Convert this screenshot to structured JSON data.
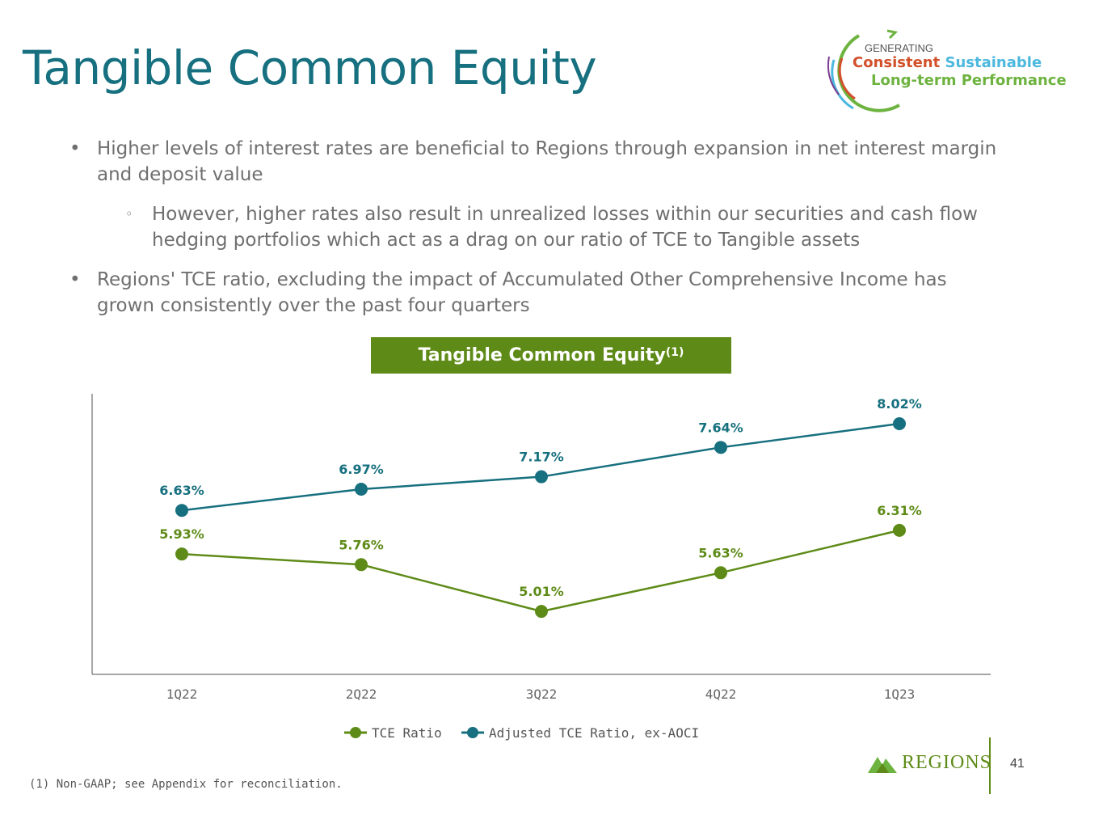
{
  "page": {
    "title": "Tangible Common Equity",
    "logo": {
      "line1": "GENERATING",
      "line2a": "Consistent",
      "line2b": "Sustainable",
      "line3": "Long-term Performance"
    },
    "bullets": {
      "b1": "Higher levels of interest rates are beneficial to Regions through expansion in net interest margin and deposit value",
      "sub1": "However, higher rates also result in unrealized losses within our securities and cash flow hedging portfolios which act as a drag on our ratio of TCE to Tangible assets",
      "b2": "Regions' TCE ratio, excluding the impact of Accumulated Other Comprehensive Income has grown consistently over the past four quarters"
    },
    "chart_header": "Tangible Common Equity",
    "chart_header_sup": "(1)",
    "footnote": "(1) Non-GAAP; see Appendix for reconciliation.",
    "brand": "REGIONS",
    "page_number": "41",
    "colors": {
      "title": "#17707f",
      "green": "#5e8b17",
      "teal": "#17707f"
    }
  },
  "chart_data": {
    "type": "line",
    "categories": [
      "1Q22",
      "2Q22",
      "3Q22",
      "4Q22",
      "1Q23"
    ],
    "series": [
      {
        "name": "TCE Ratio",
        "color": "#5e8b17",
        "values": [
          5.93,
          5.76,
          5.01,
          5.63,
          6.31
        ],
        "labels": [
          "5.93%",
          "5.76%",
          "5.01%",
          "5.63%",
          "6.31%"
        ]
      },
      {
        "name": "Adjusted TCE Ratio, ex-AOCI",
        "color": "#17707f",
        "values": [
          6.63,
          6.97,
          7.17,
          7.64,
          8.02
        ],
        "labels": [
          "6.63%",
          "6.97%",
          "7.17%",
          "7.64%",
          "8.02%"
        ]
      }
    ],
    "ylim": [
      4.0,
      8.5
    ],
    "grid": false,
    "legend": "bottom"
  }
}
